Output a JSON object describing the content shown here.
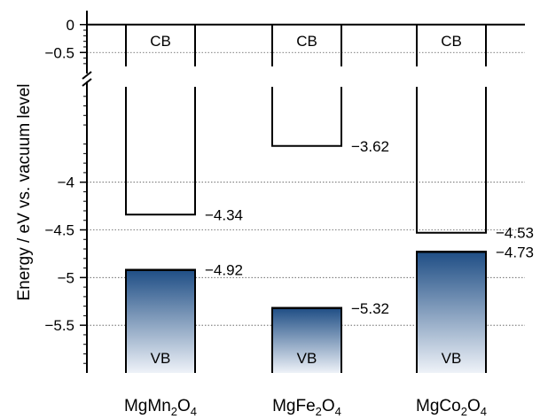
{
  "chart_data": {
    "type": "bar",
    "title": "",
    "ylabel": "Energy / eV vs. vacuum level",
    "xlabel": "",
    "axis_break": true,
    "ylim_upper": [
      -0.75,
      0.25
    ],
    "ylim_lower": [
      -6.0,
      -3.0
    ],
    "yticks_upper": [
      0,
      -0.5
    ],
    "yticks_lower": [
      -4,
      -4.5,
      -5,
      -5.5
    ],
    "ytick_labels_upper": [
      "0",
      "−0.5"
    ],
    "ytick_labels_lower": [
      "−4",
      "−4.5",
      "−5",
      "−5.5"
    ],
    "grid": "dotted horizontal at major ticks",
    "categories": [
      {
        "base": "MgMn",
        "sub1": "2",
        "mid": "O",
        "sub2": "4"
      },
      {
        "base": "MgFe",
        "sub1": "2",
        "mid": "O",
        "sub2": "4"
      },
      {
        "base": "MgCo",
        "sub1": "2",
        "mid": "O",
        "sub2": "4"
      }
    ],
    "conduction_band_edge": [
      -4.34,
      -3.62,
      -4.53
    ],
    "valence_band_edge": [
      -4.92,
      -5.32,
      -4.73
    ],
    "cb_edge_labels": [
      "−4.34",
      "−3.62",
      "−4.53"
    ],
    "vb_edge_labels": [
      "−4.92",
      "−5.32",
      "−4.73"
    ],
    "cb_label": "CB",
    "vb_label": "VB",
    "vb_gradient": [
      "#1f4e85",
      "#eef2f8"
    ]
  }
}
